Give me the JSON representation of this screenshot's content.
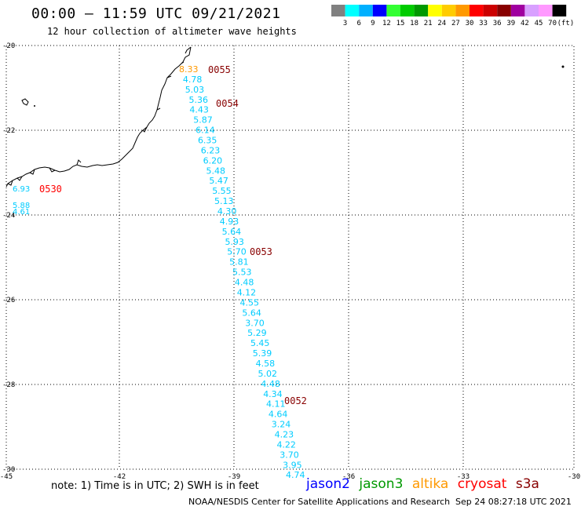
{
  "title": "00:00 – 11:59 UTC 09/21/2021",
  "subtitle": "12 hour collection of altimeter wave heights",
  "colorbar": {
    "colors": [
      "#808080",
      "#00ffff",
      "#00b0ff",
      "#0000ff",
      "#33ff33",
      "#00cc00",
      "#009900",
      "#ffff00",
      "#ffcc00",
      "#ff9900",
      "#ff0000",
      "#cc0000",
      "#880000",
      "#a000a0",
      "#d8a0ff",
      "#ff99ff",
      "#000000"
    ],
    "labels": [
      "3",
      "6",
      "9",
      "12",
      "15",
      "18",
      "21",
      "24",
      "27",
      "30",
      "33",
      "36",
      "39",
      "42",
      "45",
      "70"
    ],
    "unit": "(ft)"
  },
  "map": {
    "lat_labels": [
      "-20",
      "-22",
      "-24",
      "-26",
      "-28",
      "-30"
    ],
    "lon_labels": [
      "-45",
      "-42",
      "-39",
      "-36",
      "-33",
      "-30"
    ]
  },
  "track_a": {
    "values": [
      {
        "text": "8.33",
        "color": "#ff9900"
      },
      {
        "text": "4.78",
        "color": "#00ccff"
      },
      {
        "text": "5.03",
        "color": "#00ccff"
      },
      {
        "text": "5.36",
        "color": "#00ccff"
      },
      {
        "text": "4.43",
        "color": "#00ccff"
      },
      {
        "text": "5.87",
        "color": "#00ccff"
      },
      {
        "text": "6.14",
        "color": "#00ccff"
      },
      {
        "text": "6.35",
        "color": "#00ccff"
      },
      {
        "text": "6.23",
        "color": "#00ccff"
      },
      {
        "text": "6.20",
        "color": "#00ccff"
      },
      {
        "text": "5.48",
        "color": "#00ccff"
      },
      {
        "text": "5.47",
        "color": "#00ccff"
      },
      {
        "text": "5.55",
        "color": "#00ccff"
      },
      {
        "text": "5.13",
        "color": "#00ccff"
      },
      {
        "text": "4.30",
        "color": "#00ccff"
      },
      {
        "text": "4.93",
        "color": "#00ccff"
      },
      {
        "text": "5.64",
        "color": "#00ccff"
      },
      {
        "text": "5.93",
        "color": "#00ccff"
      },
      {
        "text": "5.70",
        "color": "#00ccff"
      },
      {
        "text": "5.81",
        "color": "#00ccff"
      },
      {
        "text": "5.53",
        "color": "#00ccff"
      },
      {
        "text": "4.48",
        "color": "#00ccff"
      },
      {
        "text": "4.12",
        "color": "#00ccff"
      },
      {
        "text": "4.55",
        "color": "#00ccff"
      },
      {
        "text": "5.64",
        "color": "#00ccff"
      },
      {
        "text": "3.70",
        "color": "#00ccff"
      },
      {
        "text": "5.29",
        "color": "#00ccff"
      },
      {
        "text": "5.45",
        "color": "#00ccff"
      },
      {
        "text": "5.39",
        "color": "#00ccff"
      },
      {
        "text": "4.58",
        "color": "#00ccff"
      },
      {
        "text": "5.02",
        "color": "#00ccff"
      },
      {
        "text": "4.48",
        "color": "#00ccff"
      },
      {
        "text": "4.34",
        "color": "#00ccff"
      },
      {
        "text": "4.11",
        "color": "#00ccff"
      },
      {
        "text": "4.64",
        "color": "#00ccff"
      },
      {
        "text": "3.24",
        "color": "#00ccff"
      },
      {
        "text": "4.23",
        "color": "#00ccff"
      },
      {
        "text": "4.22",
        "color": "#00ccff"
      },
      {
        "text": "3.70",
        "color": "#00ccff"
      },
      {
        "text": "3.95",
        "color": "#00ccff"
      },
      {
        "text": "4.74",
        "color": "#00ccff"
      }
    ],
    "time_labels": [
      "0055",
      "0054",
      "0053",
      "0052"
    ],
    "time_label_color": "#880000"
  },
  "track_b": {
    "values": [
      "6.93",
      "5.88",
      "4.61"
    ],
    "value_color": "#00ccff",
    "time_label": "0530",
    "time_label_color": "#ff0000"
  },
  "footer": {
    "note": "note: 1) Time is in UTC; 2) SWH is in feet",
    "satellites": [
      {
        "name": "jason2",
        "color": "#0000ff"
      },
      {
        "name": "jason3",
        "color": "#009900"
      },
      {
        "name": "altika",
        "color": "#ff9900"
      },
      {
        "name": "cryosat",
        "color": "#ff0000"
      },
      {
        "name": "s3a",
        "color": "#880000"
      }
    ],
    "credit": "NOAA/NESDIS Center for Satellite Applications and Research",
    "timestamp": "Sep 24 08:27:18 UTC 2021"
  }
}
